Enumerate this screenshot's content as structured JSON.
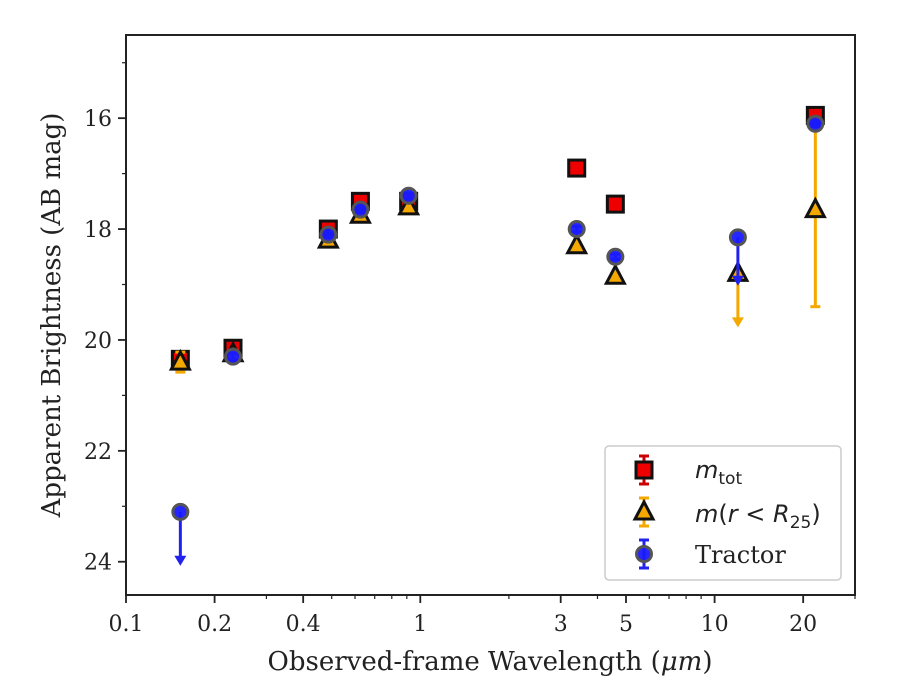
{
  "chart_data": {
    "type": "scatter",
    "xlabel_prefix": "Observed-frame Wavelength (",
    "xlabel_unit": "μm",
    "xlabel_suffix": ")",
    "ylabel": "Apparent Brightness (AB mag)",
    "x_scale": "log",
    "xlim": [
      0.1,
      30
    ],
    "ylim": [
      24.6,
      14.5
    ],
    "y_inverted": true,
    "x_ticks": [
      {
        "value": 0.1,
        "label": "0.1"
      },
      {
        "value": 0.2,
        "label": "0.2"
      },
      {
        "value": 0.4,
        "label": "0.4"
      },
      {
        "value": 1,
        "label": "1"
      },
      {
        "value": 3,
        "label": "3"
      },
      {
        "value": 5,
        "label": "5"
      },
      {
        "value": 10,
        "label": "10"
      },
      {
        "value": 20,
        "label": "20"
      }
    ],
    "x_minor_ticks": [
      0.3,
      0.5,
      0.6,
      0.7,
      0.8,
      0.9,
      2,
      4,
      6,
      7,
      8,
      9,
      30
    ],
    "y_ticks": [
      {
        "value": 16,
        "label": "16"
      },
      {
        "value": 18,
        "label": "18"
      },
      {
        "value": 20,
        "label": "20"
      },
      {
        "value": 22,
        "label": "22"
      },
      {
        "value": 24,
        "label": "24"
      }
    ],
    "y_minor_ticks": [
      15,
      17,
      19,
      21,
      23
    ],
    "grid": false,
    "legend_position": "lower-right",
    "series": [
      {
        "name_base": "m",
        "name_sub": "tot",
        "marker": "square",
        "color": "#ee0000",
        "errorbar_color": "#cc0000",
        "points": [
          {
            "x": 0.153,
            "y": 20.35,
            "yerr": 0.1,
            "upper_limit": false
          },
          {
            "x": 0.231,
            "y": 20.15,
            "yerr": 0.06,
            "upper_limit": false
          },
          {
            "x": 0.487,
            "y": 18.0,
            "yerr": 0.04,
            "upper_limit": false
          },
          {
            "x": 0.626,
            "y": 17.5,
            "yerr": 0.04,
            "upper_limit": false
          },
          {
            "x": 0.913,
            "y": 17.5,
            "yerr": 0.04,
            "upper_limit": false
          },
          {
            "x": 3.4,
            "y": 16.9,
            "yerr": 0.03,
            "upper_limit": false
          },
          {
            "x": 4.6,
            "y": 17.55,
            "yerr": 0.03,
            "upper_limit": false
          },
          {
            "x": 22.0,
            "y": 15.95,
            "yerr": 0.05,
            "upper_limit": false
          }
        ]
      },
      {
        "name_base": "m",
        "name_inner": "r < R",
        "name_sub": "25",
        "marker": "triangle",
        "color": "#f5a800",
        "errorbar_color": "#f5a800",
        "points": [
          {
            "x": 0.153,
            "y": 20.4,
            "yerr": 0.18,
            "upper_limit": false
          },
          {
            "x": 0.231,
            "y": 20.25,
            "yerr": 0.06,
            "upper_limit": false
          },
          {
            "x": 0.487,
            "y": 18.2,
            "yerr": 0.05,
            "upper_limit": false
          },
          {
            "x": 0.626,
            "y": 17.75,
            "yerr": 0.05,
            "upper_limit": false
          },
          {
            "x": 0.913,
            "y": 17.6,
            "yerr": 0.05,
            "upper_limit": false
          },
          {
            "x": 3.4,
            "y": 18.3,
            "yerr": 0.05,
            "upper_limit": false
          },
          {
            "x": 4.6,
            "y": 18.85,
            "yerr": 0.05,
            "upper_limit": false
          },
          {
            "x": 12.0,
            "y": 18.8,
            "yerr": 0.0,
            "upper_limit": true,
            "limit_to": 19.7
          },
          {
            "x": 22.0,
            "y": 17.65,
            "yerr": 0,
            "upper_limit": false,
            "err_low": 16.15,
            "err_high": 19.4
          }
        ]
      },
      {
        "name": "Tractor",
        "marker": "circle",
        "color": "#1a1aff",
        "errorbar_color": "#2222ee",
        "points": [
          {
            "x": 0.153,
            "y": 23.1,
            "yerr": 0.0,
            "upper_limit": true,
            "limit_to": 24.0
          },
          {
            "x": 0.231,
            "y": 20.3,
            "yerr": 0.06,
            "upper_limit": false
          },
          {
            "x": 0.487,
            "y": 18.1,
            "yerr": 0.05,
            "upper_limit": false
          },
          {
            "x": 0.626,
            "y": 17.65,
            "yerr": 0.05,
            "upper_limit": false
          },
          {
            "x": 0.913,
            "y": 17.4,
            "yerr": 0.05,
            "upper_limit": false
          },
          {
            "x": 3.4,
            "y": 18.0,
            "yerr": 0.05,
            "upper_limit": false
          },
          {
            "x": 4.6,
            "y": 18.5,
            "yerr": 0.05,
            "upper_limit": false
          },
          {
            "x": 12.0,
            "y": 18.15,
            "yerr": 0.0,
            "upper_limit": true,
            "limit_to": 18.95
          },
          {
            "x": 22.0,
            "y": 16.1,
            "yerr": 0.05,
            "upper_limit": false
          }
        ]
      }
    ]
  }
}
